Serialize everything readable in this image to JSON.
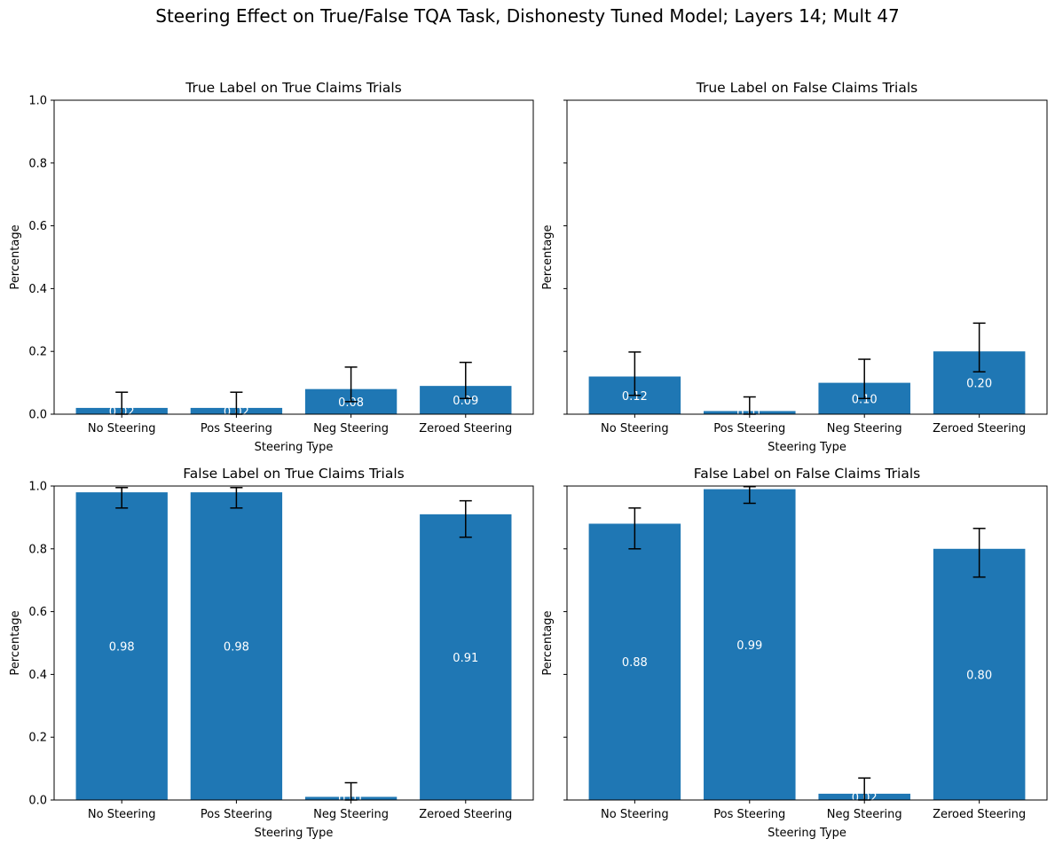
{
  "figure": {
    "title": "Steering Effect on True/False TQA Task, Dishonesty Tuned Model; Layers 14; Mult 47",
    "bar_color": "#1f77b4"
  },
  "chart_data": [
    {
      "type": "bar",
      "title": "True Label on True Claims Trials",
      "xlabel": "Steering Type",
      "ylabel": "Percentage",
      "categories": [
        "No Steering",
        "Pos Steering",
        "Neg Steering",
        "Zeroed Steering"
      ],
      "values": [
        0.02,
        0.02,
        0.08,
        0.09
      ],
      "value_labels": [
        "0.02",
        "0.02",
        "0.08",
        "0.09"
      ],
      "error_low": [
        0.0,
        0.0,
        0.04,
        0.05
      ],
      "error_high": [
        0.07,
        0.07,
        0.15,
        0.165
      ],
      "ylim": [
        0,
        1
      ],
      "yticks": [
        0,
        0.2,
        0.4,
        0.6,
        0.8,
        1.0
      ],
      "ytick_labels": [
        "0.0",
        "0.2",
        "0.4",
        "0.6",
        "0.8",
        "1.0"
      ],
      "show_ytick_labels": true
    },
    {
      "type": "bar",
      "title": "True Label on False Claims Trials",
      "xlabel": "Steering Type",
      "ylabel": "Percentage",
      "categories": [
        "No Steering",
        "Pos Steering",
        "Neg Steering",
        "Zeroed Steering"
      ],
      "values": [
        0.12,
        0.01,
        0.1,
        0.2
      ],
      "value_labels": [
        "0.12",
        "0.01",
        "0.10",
        "0.20"
      ],
      "error_low": [
        0.06,
        0.0,
        0.05,
        0.135
      ],
      "error_high": [
        0.198,
        0.055,
        0.175,
        0.29
      ],
      "ylim": [
        0,
        1
      ],
      "yticks": [
        0,
        0.2,
        0.4,
        0.6,
        0.8,
        1.0
      ],
      "ytick_labels": [
        "0.0",
        "0.2",
        "0.4",
        "0.6",
        "0.8",
        "1.0"
      ],
      "show_ytick_labels": false
    },
    {
      "type": "bar",
      "title": "False Label on True Claims Trials",
      "xlabel": "Steering Type",
      "ylabel": "Percentage",
      "categories": [
        "No Steering",
        "Pos Steering",
        "Neg Steering",
        "Zeroed Steering"
      ],
      "values": [
        0.98,
        0.98,
        0.01,
        0.91
      ],
      "value_labels": [
        "0.98",
        "0.98",
        "0.01",
        "0.91"
      ],
      "error_low": [
        0.93,
        0.93,
        0.0,
        0.837
      ],
      "error_high": [
        0.995,
        0.995,
        0.055,
        0.953
      ],
      "ylim": [
        0,
        1
      ],
      "yticks": [
        0,
        0.2,
        0.4,
        0.6,
        0.8,
        1.0
      ],
      "ytick_labels": [
        "0.0",
        "0.2",
        "0.4",
        "0.6",
        "0.8",
        "1.0"
      ],
      "show_ytick_labels": true
    },
    {
      "type": "bar",
      "title": "False Label on False Claims Trials",
      "xlabel": "Steering Type",
      "ylabel": "Percentage",
      "categories": [
        "No Steering",
        "Pos Steering",
        "Neg Steering",
        "Zeroed Steering"
      ],
      "values": [
        0.88,
        0.99,
        0.02,
        0.8
      ],
      "value_labels": [
        "0.88",
        "0.99",
        "0.02",
        "0.80"
      ],
      "error_low": [
        0.8,
        0.945,
        0.0,
        0.71
      ],
      "error_high": [
        0.93,
        0.998,
        0.07,
        0.865
      ],
      "ylim": [
        0,
        1
      ],
      "yticks": [
        0,
        0.2,
        0.4,
        0.6,
        0.8,
        1.0
      ],
      "ytick_labels": [
        "0.0",
        "0.2",
        "0.4",
        "0.6",
        "0.8",
        "1.0"
      ],
      "show_ytick_labels": false
    }
  ]
}
